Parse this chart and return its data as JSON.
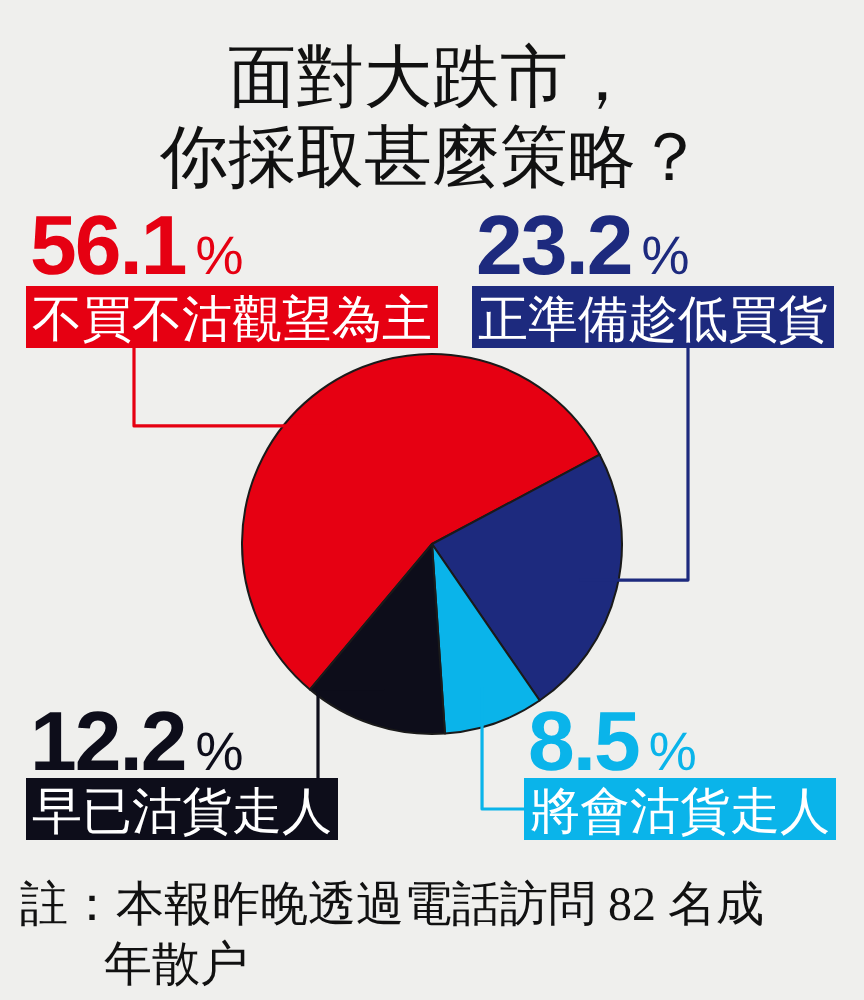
{
  "chart_data": {
    "type": "pie",
    "title": "面對大跌市，你採取甚麼策略？",
    "categories": [
      "不買不沽觀望為主",
      "正準備趁低買貨",
      "將會沽貨走人",
      "早已沽貨走人"
    ],
    "values": [
      56.1,
      23.2,
      8.5,
      12.2
    ],
    "colors": [
      "#e60012",
      "#1d2a7e",
      "#0ab4ea",
      "#0d0d1a"
    ],
    "value_labels": [
      "56.1%",
      "23.2%",
      "8.5%",
      "12.2%"
    ],
    "annotations": [
      "註：本報昨晚透過電話訪問 82 名成年散户"
    ]
  }
}
